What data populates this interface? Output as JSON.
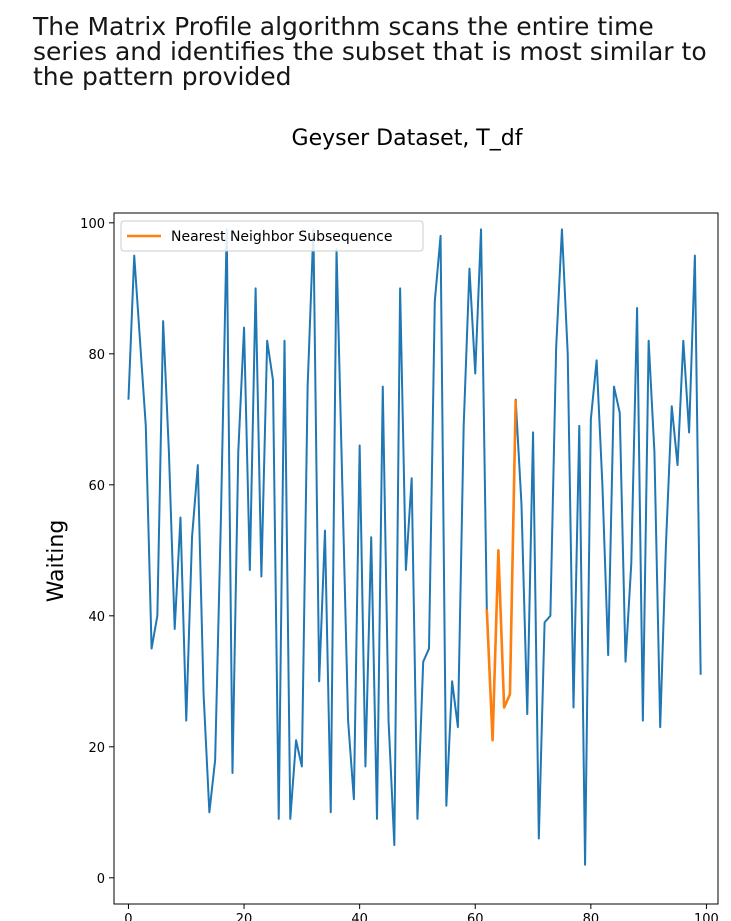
{
  "caption": "The Matrix Profile algorithm scans the entire time series and identifies the subset that is most similar to the pattern provided",
  "chart_data": {
    "type": "line",
    "title": "Geyser Dataset, T_df",
    "xlabel": "",
    "ylabel": "Waiting",
    "xlim": [
      -2.5,
      102
    ],
    "ylim": [
      -4,
      101.5
    ],
    "x_ticks": [
      0,
      20,
      40,
      60,
      80,
      100
    ],
    "y_ticks": [
      0,
      20,
      40,
      60,
      80,
      100
    ],
    "grid": false,
    "legend": {
      "position": "top-left"
    },
    "series": [
      {
        "name": "",
        "color": "#1f77b4",
        "values": [
          73,
          95,
          82,
          69,
          35,
          40,
          85,
          65,
          38,
          55,
          24,
          52,
          63,
          28,
          10,
          18,
          55,
          99,
          16,
          65,
          84,
          47,
          90,
          46,
          82,
          76,
          9,
          82,
          9,
          21,
          17,
          75,
          99,
          30,
          53,
          10,
          96,
          60,
          24,
          12,
          66,
          17,
          52,
          9,
          75,
          24,
          5,
          90,
          47,
          61,
          9,
          33,
          35,
          88,
          98,
          11,
          30,
          23,
          69,
          93,
          77,
          99,
          41,
          21,
          50,
          26,
          28,
          73,
          57,
          25,
          68,
          6,
          39,
          40,
          81,
          99,
          80,
          26,
          69,
          2,
          70,
          79,
          60,
          34,
          75,
          71,
          33,
          48,
          87,
          24,
          82,
          65,
          23,
          51,
          72,
          63,
          82,
          68,
          95,
          31
        ]
      },
      {
        "name": "Nearest Neighbor Subsequence",
        "color": "#ff7f0e",
        "x_start": 62,
        "values": [
          41,
          21,
          50,
          26,
          28,
          73
        ]
      }
    ]
  }
}
